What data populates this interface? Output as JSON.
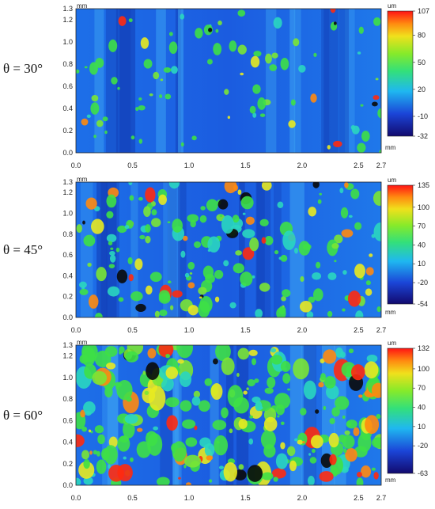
{
  "figure": {
    "panels": [
      {
        "id": "p30",
        "angle_label": "θ = 30°"
      },
      {
        "id": "p45",
        "angle_label": "θ = 45°"
      },
      {
        "id": "p60",
        "angle_label": "θ = 60°"
      }
    ],
    "colors": {
      "low": "#1a0f8c",
      "blue": "#1d5fe0",
      "cyan": "#2ad6e6",
      "green": "#3ee046",
      "yellow": "#e8ea20",
      "orange": "#ff8a10",
      "red": "#ff1010",
      "frame": "#222222"
    }
  },
  "chart_data": [
    {
      "type": "heatmap",
      "title": "θ = 30°",
      "x_unit": "mm",
      "y_unit": "mm",
      "colorbar_unit": "um",
      "x_ticks": [
        "0.0",
        "0.5",
        "1.0",
        "1.5",
        "2.0",
        "2.5",
        "2.7"
      ],
      "y_ticks": [
        "0.0",
        "0.2",
        "0.4",
        "0.6",
        "0.8",
        "1.0",
        "1.2",
        "1.3"
      ],
      "xlim": [
        0,
        2.7
      ],
      "ylim": [
        0,
        1.3
      ],
      "colorbar_ticks": [
        "107",
        "80",
        "50",
        "20",
        "-10",
        "-32"
      ],
      "colorbar_range": [
        -32,
        107
      ],
      "hot_spot_density": 0.18
    },
    {
      "type": "heatmap",
      "title": "θ = 45°",
      "x_unit": "mm",
      "y_unit": "mm",
      "colorbar_unit": "um",
      "x_ticks": [
        "0.0",
        "0.5",
        "1.0",
        "1.5",
        "2.0",
        "2.5",
        "2.7"
      ],
      "y_ticks": [
        "0.0",
        "0.2",
        "0.4",
        "0.6",
        "0.8",
        "1.0",
        "1.2",
        "1.3"
      ],
      "xlim": [
        0,
        2.7
      ],
      "ylim": [
        0,
        1.3
      ],
      "colorbar_ticks": [
        "135",
        "100",
        "70",
        "40",
        "10",
        "-20",
        "-54"
      ],
      "colorbar_range": [
        -54,
        135
      ],
      "hot_spot_density": 0.55
    },
    {
      "type": "heatmap",
      "title": "θ = 60°",
      "x_unit": "mm",
      "y_unit": "mm",
      "colorbar_unit": "um",
      "x_ticks": [
        "0.0",
        "0.5",
        "1.0",
        "1.5",
        "2.0",
        "2.5",
        "2.7"
      ],
      "y_ticks": [
        "0.0",
        "0.2",
        "0.4",
        "0.6",
        "0.8",
        "1.0",
        "1.2",
        "1.3"
      ],
      "xlim": [
        0,
        2.7
      ],
      "ylim": [
        0,
        1.3
      ],
      "colorbar_ticks": [
        "132",
        "100",
        "70",
        "40",
        "10",
        "-20",
        "-63"
      ],
      "colorbar_range": [
        -63,
        132
      ],
      "hot_spot_density": 0.9
    }
  ]
}
